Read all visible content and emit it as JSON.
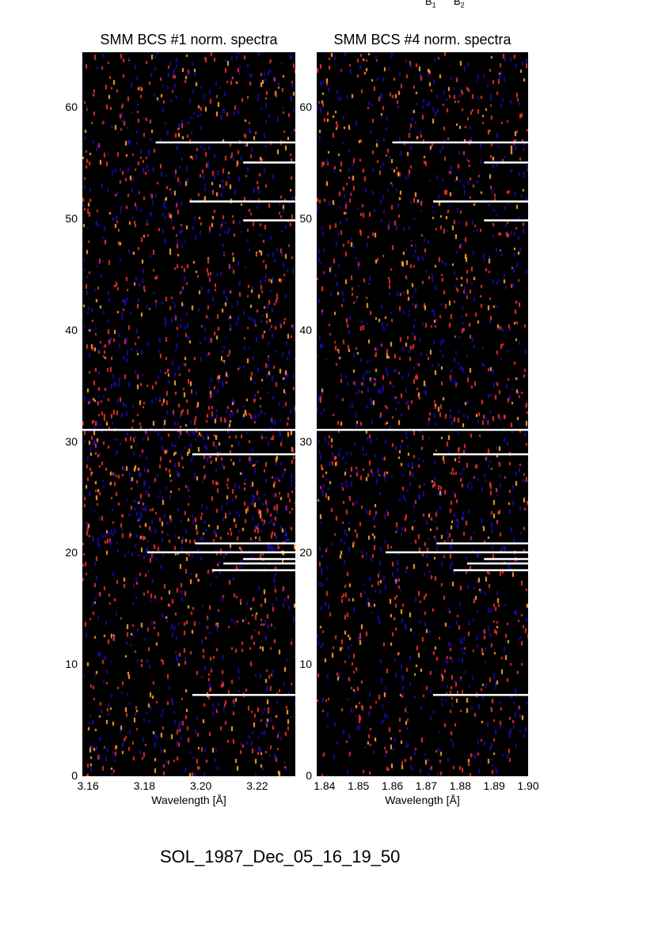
{
  "top_labels": {
    "b1": "B",
    "b1_sub": "1",
    "b2": "B",
    "b2_sub": "2"
  },
  "footer": "SOL_1987_Dec_05_16_19_50",
  "colors": {
    "background": "#000000",
    "low": "#1a0aa0",
    "mid": "#e0302a",
    "high": "#ffa030",
    "overlay_lines": "#ffffff"
  },
  "chart_data": [
    {
      "type": "heatmap",
      "title": "SMM BCS #1 norm. spectra",
      "xlabel": "Wavelength [Å]",
      "ylabel": "",
      "xlim": [
        3.158,
        3.2335
      ],
      "ylim": [
        0,
        65
      ],
      "xticks": [
        "3.16",
        "3.18",
        "3.20",
        "3.22"
      ],
      "yticks": [
        "0",
        "10",
        "20",
        "30",
        "40",
        "50",
        "60"
      ],
      "colormap": "black-blue-red-orange",
      "overlay_lines": [
        {
          "y": 56.9,
          "x_start": 3.184
        },
        {
          "y": 55.1,
          "x_start": 3.215
        },
        {
          "y": 51.6,
          "x_start": 3.196
        },
        {
          "y": 49.9,
          "x_start": 3.215
        },
        {
          "y": 31.1,
          "x_start": 3.158
        },
        {
          "y": 28.9,
          "x_start": 3.197
        },
        {
          "y": 20.9,
          "x_start": 3.198
        },
        {
          "y": 20.1,
          "x_start": 3.181
        },
        {
          "y": 19.5,
          "x_start": 3.215
        },
        {
          "y": 19.1,
          "x_start": 3.208
        },
        {
          "y": 18.5,
          "x_start": 3.204
        },
        {
          "y": 7.3,
          "x_start": 3.197
        }
      ]
    },
    {
      "type": "heatmap",
      "title": "SMM BCS #4 norm. spectra",
      "xlabel": "Wavelength [Å]",
      "ylabel": "",
      "xlim": [
        1.8377,
        1.9
      ],
      "ylim": [
        0,
        65
      ],
      "xticks": [
        "1.84",
        "1.85",
        "1.86",
        "1.87",
        "1.88",
        "1.89",
        "1.90"
      ],
      "yticks": [
        "0",
        "10",
        "20",
        "30",
        "40",
        "50",
        "60"
      ],
      "colormap": "black-blue-red-orange",
      "overlay_lines": [
        {
          "y": 56.9,
          "x_start": 1.86
        },
        {
          "y": 55.1,
          "x_start": 1.887
        },
        {
          "y": 51.6,
          "x_start": 1.872
        },
        {
          "y": 49.9,
          "x_start": 1.887
        },
        {
          "y": 31.1,
          "x_start": 1.8377
        },
        {
          "y": 28.9,
          "x_start": 1.872
        },
        {
          "y": 20.9,
          "x_start": 1.873
        },
        {
          "y": 20.1,
          "x_start": 1.858
        },
        {
          "y": 19.5,
          "x_start": 1.887
        },
        {
          "y": 19.1,
          "x_start": 1.882
        },
        {
          "y": 18.5,
          "x_start": 1.878
        },
        {
          "y": 7.3,
          "x_start": 1.872
        }
      ]
    }
  ]
}
